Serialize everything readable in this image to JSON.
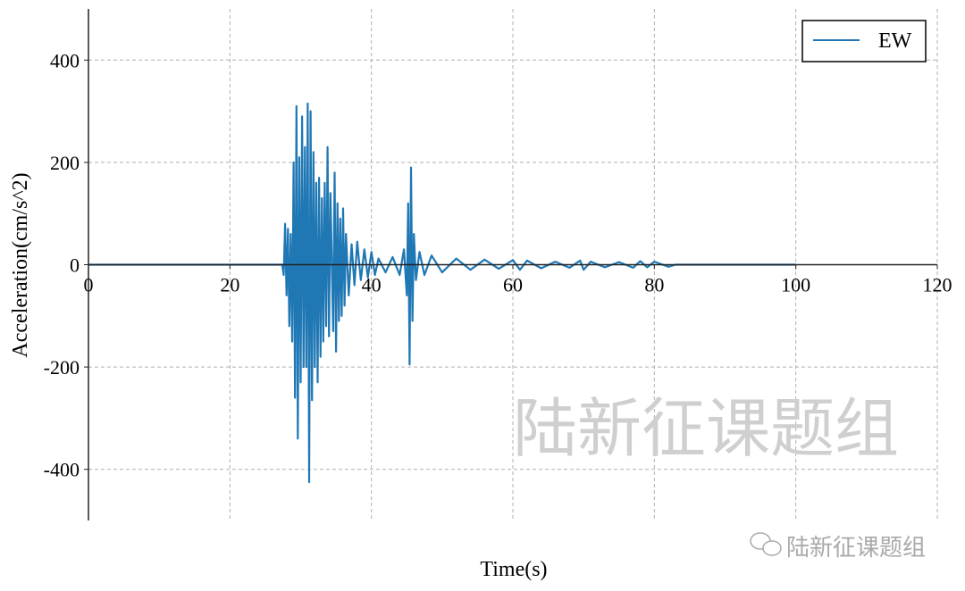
{
  "chart_data": {
    "type": "line",
    "title": "",
    "xlabel": "Time(s)",
    "ylabel": "Acceleration(cm/s^2)",
    "xlim": [
      0,
      120
    ],
    "ylim": [
      -500,
      500
    ],
    "xticks": [
      0,
      20,
      40,
      60,
      80,
      100,
      120
    ],
    "yticks": [
      -400,
      -200,
      0,
      200,
      400
    ],
    "grid": true,
    "legend_position": "top-right",
    "series": [
      {
        "name": "EW",
        "color": "#1f77b4",
        "points": [
          [
            0,
            0
          ],
          [
            27.4,
            0
          ],
          [
            27.6,
            -20
          ],
          [
            27.8,
            80
          ],
          [
            28.0,
            -60
          ],
          [
            28.2,
            70
          ],
          [
            28.4,
            -120
          ],
          [
            28.6,
            60
          ],
          [
            28.8,
            -150
          ],
          [
            29.0,
            200
          ],
          [
            29.2,
            -260
          ],
          [
            29.4,
            310
          ],
          [
            29.6,
            -340
          ],
          [
            29.8,
            210
          ],
          [
            30.0,
            -230
          ],
          [
            30.2,
            290
          ],
          [
            30.4,
            -200
          ],
          [
            30.6,
            230
          ],
          [
            30.8,
            -200
          ],
          [
            31.0,
            315
          ],
          [
            31.2,
            -425
          ],
          [
            31.4,
            300
          ],
          [
            31.6,
            -265
          ],
          [
            31.8,
            220
          ],
          [
            32.0,
            -200
          ],
          [
            32.2,
            160
          ],
          [
            32.4,
            -230
          ],
          [
            32.6,
            170
          ],
          [
            32.8,
            -180
          ],
          [
            33.0,
            130
          ],
          [
            33.2,
            -150
          ],
          [
            33.4,
            160
          ],
          [
            33.6,
            -120
          ],
          [
            33.8,
            230
          ],
          [
            34.0,
            -140
          ],
          [
            34.2,
            140
          ],
          [
            34.6,
            -130
          ],
          [
            34.8,
            180
          ],
          [
            35.0,
            -170
          ],
          [
            35.2,
            120
          ],
          [
            35.4,
            -110
          ],
          [
            35.6,
            90
          ],
          [
            35.8,
            -100
          ],
          [
            36.0,
            110
          ],
          [
            36.2,
            -80
          ],
          [
            36.4,
            60
          ],
          [
            36.8,
            -60
          ],
          [
            37.2,
            40
          ],
          [
            37.6,
            -40
          ],
          [
            38.0,
            45
          ],
          [
            38.5,
            -30
          ],
          [
            39.0,
            30
          ],
          [
            39.5,
            -25
          ],
          [
            40.0,
            25
          ],
          [
            40.5,
            -20
          ],
          [
            41.0,
            12
          ],
          [
            42.0,
            -15
          ],
          [
            43.0,
            15
          ],
          [
            44.0,
            -20
          ],
          [
            44.6,
            30
          ],
          [
            45.0,
            -60
          ],
          [
            45.2,
            120
          ],
          [
            45.4,
            -195
          ],
          [
            45.6,
            190
          ],
          [
            45.8,
            -110
          ],
          [
            46.0,
            60
          ],
          [
            46.3,
            -30
          ],
          [
            46.8,
            25
          ],
          [
            47.5,
            -20
          ],
          [
            48.5,
            18
          ],
          [
            50,
            -15
          ],
          [
            52,
            12
          ],
          [
            54,
            -10
          ],
          [
            56,
            10
          ],
          [
            58,
            -8
          ],
          [
            60,
            9
          ],
          [
            61,
            -10
          ],
          [
            62,
            8
          ],
          [
            64,
            -7
          ],
          [
            66,
            6
          ],
          [
            68,
            -6
          ],
          [
            69.5,
            8
          ],
          [
            70,
            -10
          ],
          [
            71,
            6
          ],
          [
            73,
            -5
          ],
          [
            75,
            5
          ],
          [
            77,
            -6
          ],
          [
            78,
            7
          ],
          [
            79,
            -5
          ],
          [
            80,
            6
          ],
          [
            82,
            -4
          ],
          [
            83,
            0
          ],
          [
            100,
            0
          ]
        ]
      }
    ]
  },
  "watermark": {
    "center_text": "陆新征课题组",
    "corner_text": "陆新征课题组",
    "corner_icon": "wechat-icon"
  }
}
